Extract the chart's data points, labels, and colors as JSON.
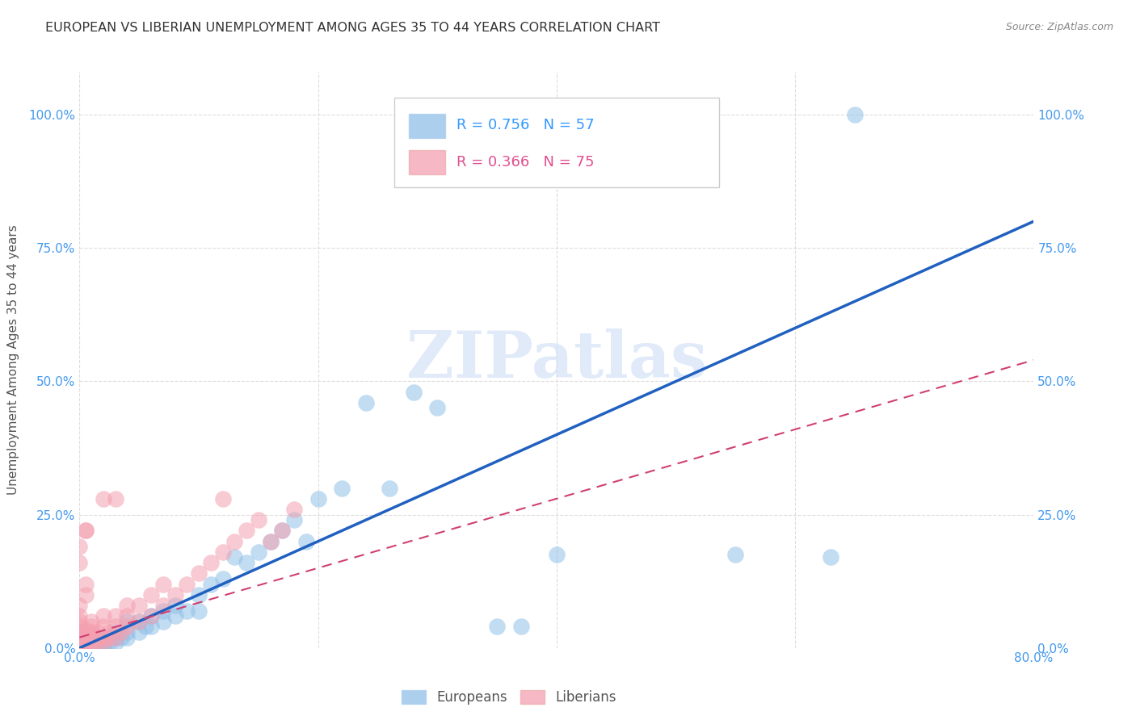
{
  "title": "EUROPEAN VS LIBERIAN UNEMPLOYMENT AMONG AGES 35 TO 44 YEARS CORRELATION CHART",
  "source": "Source: ZipAtlas.com",
  "ylabel": "Unemployment Among Ages 35 to 44 years",
  "xlim": [
    0.0,
    0.8
  ],
  "ylim": [
    0.0,
    1.08
  ],
  "yticks": [
    0.0,
    0.25,
    0.5,
    0.75,
    1.0
  ],
  "ytick_labels": [
    "0.0%",
    "25.0%",
    "50.0%",
    "75.0%",
    "100.0%"
  ],
  "xticks": [
    0.0,
    0.2,
    0.4,
    0.6,
    0.8
  ],
  "xtick_labels": [
    "0.0%",
    "",
    "",
    "",
    "80.0%"
  ],
  "european_color": "#90c0e8",
  "liberian_color": "#f4a0b0",
  "european_R": 0.756,
  "european_N": 57,
  "liberian_R": 0.366,
  "liberian_N": 75,
  "title_fontsize": 11.5,
  "axis_label_fontsize": 11,
  "tick_fontsize": 11,
  "watermark": "ZIPatlas",
  "background_color": "#ffffff",
  "grid_color": "#dddddd",
  "european_line_color": "#2060c0",
  "liberian_line_color": "#d04070",
  "eu_line_x": [
    0.0,
    0.8
  ],
  "eu_line_y": [
    0.0,
    0.8
  ],
  "lib_line_x": [
    0.0,
    0.8
  ],
  "lib_line_y": [
    0.02,
    0.54
  ],
  "eu_scatter_x": [
    0.0,
    0.0,
    0.0,
    0.005,
    0.005,
    0.01,
    0.01,
    0.01,
    0.01,
    0.015,
    0.015,
    0.015,
    0.02,
    0.02,
    0.02,
    0.025,
    0.025,
    0.03,
    0.03,
    0.03,
    0.035,
    0.04,
    0.04,
    0.04,
    0.05,
    0.05,
    0.055,
    0.06,
    0.06,
    0.07,
    0.07,
    0.08,
    0.08,
    0.09,
    0.1,
    0.1,
    0.11,
    0.12,
    0.13,
    0.14,
    0.15,
    0.16,
    0.17,
    0.18,
    0.19,
    0.2,
    0.22,
    0.24,
    0.26,
    0.28,
    0.3,
    0.35,
    0.37,
    0.4,
    0.55,
    0.63,
    0.65
  ],
  "eu_scatter_y": [
    0.0,
    0.005,
    0.01,
    0.0,
    0.005,
    0.0,
    0.005,
    0.01,
    0.015,
    0.005,
    0.01,
    0.02,
    0.005,
    0.01,
    0.02,
    0.01,
    0.02,
    0.01,
    0.02,
    0.03,
    0.02,
    0.02,
    0.03,
    0.05,
    0.03,
    0.05,
    0.04,
    0.04,
    0.06,
    0.05,
    0.07,
    0.06,
    0.08,
    0.07,
    0.07,
    0.1,
    0.12,
    0.13,
    0.17,
    0.16,
    0.18,
    0.2,
    0.22,
    0.24,
    0.2,
    0.28,
    0.3,
    0.46,
    0.3,
    0.48,
    0.45,
    0.04,
    0.04,
    0.175,
    0.175,
    0.17,
    1.0
  ],
  "lib_scatter_x": [
    0.0,
    0.0,
    0.0,
    0.0,
    0.0,
    0.0,
    0.0,
    0.0,
    0.0,
    0.0,
    0.0,
    0.0,
    0.005,
    0.005,
    0.005,
    0.005,
    0.005,
    0.005,
    0.005,
    0.01,
    0.01,
    0.01,
    0.01,
    0.01,
    0.01,
    0.015,
    0.015,
    0.015,
    0.02,
    0.02,
    0.02,
    0.02,
    0.025,
    0.025,
    0.03,
    0.03,
    0.03,
    0.035,
    0.04,
    0.04,
    0.04,
    0.05,
    0.05,
    0.06,
    0.06,
    0.07,
    0.07,
    0.08,
    0.09,
    0.1,
    0.11,
    0.12,
    0.13,
    0.14,
    0.15,
    0.16,
    0.17,
    0.18,
    0.12,
    0.005,
    0.0,
    0.0,
    0.02,
    0.03,
    0.005,
    0.0,
    0.0,
    0.0,
    0.0,
    0.0,
    0.005,
    0.01,
    0.01,
    0.005,
    0.005
  ],
  "lib_scatter_y": [
    0.0,
    0.0,
    0.0,
    0.0,
    0.005,
    0.005,
    0.01,
    0.01,
    0.015,
    0.02,
    0.025,
    0.03,
    0.0,
    0.005,
    0.01,
    0.015,
    0.02,
    0.025,
    0.03,
    0.005,
    0.01,
    0.015,
    0.02,
    0.025,
    0.03,
    0.01,
    0.02,
    0.03,
    0.01,
    0.02,
    0.04,
    0.06,
    0.02,
    0.03,
    0.02,
    0.04,
    0.06,
    0.03,
    0.04,
    0.06,
    0.08,
    0.05,
    0.08,
    0.06,
    0.1,
    0.08,
    0.12,
    0.1,
    0.12,
    0.14,
    0.16,
    0.18,
    0.2,
    0.22,
    0.24,
    0.2,
    0.22,
    0.26,
    0.28,
    0.22,
    0.19,
    0.16,
    0.28,
    0.28,
    0.22,
    0.08,
    0.06,
    0.05,
    0.04,
    0.03,
    0.035,
    0.04,
    0.05,
    0.1,
    0.12
  ]
}
